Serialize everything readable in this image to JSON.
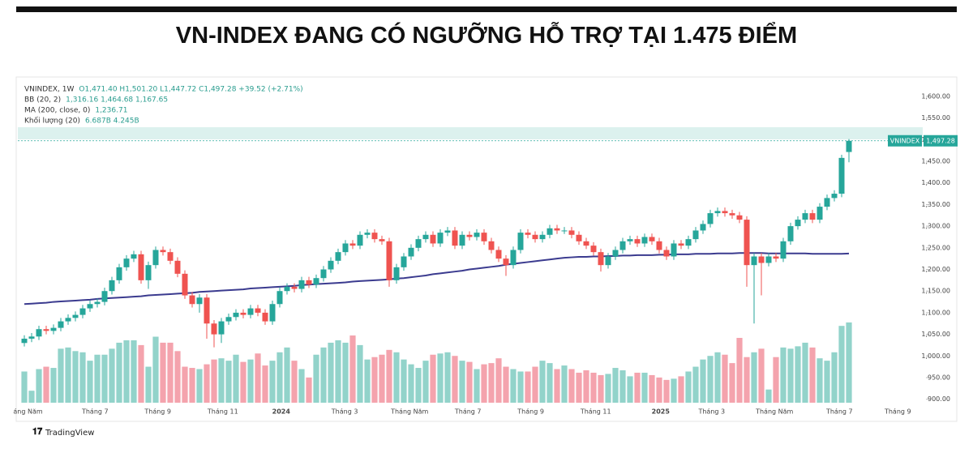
{
  "title": "VN-INDEX ĐANG CÓ NGƯỠNG HỖ TRỢ TẠI 1.475 ĐIỂM",
  "legend": [
    {
      "label": "VNINDEX, 1W",
      "values": "O1,471.40  H1,501.20  L1,447.72  C1,497.28  +39.52 (+2.71%)"
    },
    {
      "label": "BB (20, 2)",
      "values": "1,316.16  1,464.68  1,167.65"
    },
    {
      "label": "MA (200, close, 0)",
      "values": "1,236.71"
    },
    {
      "label": "Khối lượng (20)",
      "values": "6.687B  4.245B"
    }
  ],
  "price_tag": {
    "name": "VNINDEX",
    "value": "1,497.28"
  },
  "brand": "TradingView",
  "chart_data": {
    "type": "candlestick",
    "up_color": "#26a69a",
    "down_color": "#ef5350",
    "volume_up_color": "#92d3ca",
    "volume_down_color": "#f4a3ad",
    "ma_color": "#3b3b8f",
    "ylim": [
      892,
      1641
    ],
    "vlim": [
      0,
      27
    ],
    "yticks": [
      {
        "value": 900,
        "label": "900.00"
      },
      {
        "value": 950,
        "label": "950.00"
      },
      {
        "value": 1000,
        "label": "1,000.00"
      },
      {
        "value": 1050,
        "label": "1,050.00"
      },
      {
        "value": 1100,
        "label": "1,100.00"
      },
      {
        "value": 1150,
        "label": "1,150.00"
      },
      {
        "value": 1200,
        "label": "1,200.00"
      },
      {
        "value": 1250,
        "label": "1,250.00"
      },
      {
        "value": 1300,
        "label": "1,300.00"
      },
      {
        "value": 1350,
        "label": "1,350.00"
      },
      {
        "value": 1400,
        "label": "1,400.00"
      },
      {
        "value": 1450,
        "label": "1,450.00"
      },
      {
        "value": 1500,
        "label": "1,500.00"
      },
      {
        "value": 1550,
        "label": "1,550.00"
      },
      {
        "value": 1600,
        "label": "1,600.00"
      }
    ],
    "x_labels": [
      {
        "position": 0.5,
        "label": "áng Năm"
      },
      {
        "position": 9.7,
        "label": "Tháng 7"
      },
      {
        "position": 18.3,
        "label": "Tháng 9"
      },
      {
        "position": 27.2,
        "label": "Tháng 11"
      },
      {
        "position": 35.2,
        "label": "2024"
      },
      {
        "position": 43.9,
        "label": "Tháng 3"
      },
      {
        "position": 52.8,
        "label": "Tháng Năm"
      },
      {
        "position": 60.8,
        "label": "Tháng 7"
      },
      {
        "position": 69.4,
        "label": "Tháng 9"
      },
      {
        "position": 78.3,
        "label": "Tháng 11"
      },
      {
        "position": 87.2,
        "label": "2025"
      },
      {
        "position": 94.2,
        "label": "Tháng 3"
      },
      {
        "position": 102.8,
        "label": "Tháng Năm"
      },
      {
        "position": 111.7,
        "label": "Tháng 7"
      },
      {
        "position": 119.7,
        "label": "Tháng 9"
      }
    ],
    "open": [
      1030,
      1040,
      1045,
      1062,
      1058,
      1065,
      1080,
      1088,
      1095,
      1110,
      1120,
      1125,
      1150,
      1175,
      1205,
      1225,
      1235,
      1175,
      1210,
      1245,
      1240,
      1220,
      1190,
      1140,
      1120,
      1135,
      1075,
      1050,
      1080,
      1090,
      1100,
      1095,
      1110,
      1100,
      1080,
      1120,
      1150,
      1160,
      1155,
      1175,
      1165,
      1180,
      1200,
      1220,
      1240,
      1260,
      1255,
      1280,
      1285,
      1270,
      1265,
      1175,
      1205,
      1230,
      1250,
      1270,
      1280,
      1260,
      1285,
      1290,
      1255,
      1280,
      1275,
      1285,
      1265,
      1245,
      1225,
      1210,
      1245,
      1285,
      1280,
      1270,
      1280,
      1295,
      1290,
      1290,
      1280,
      1265,
      1255,
      1240,
      1210,
      1230,
      1245,
      1265,
      1270,
      1260,
      1275,
      1265,
      1245,
      1230,
      1260,
      1255,
      1270,
      1290,
      1305,
      1330,
      1335,
      1330,
      1325,
      1315,
      1210,
      1230,
      1215,
      1230,
      1225,
      1265,
      1300,
      1315,
      1330,
      1315,
      1345,
      1365,
      1375,
      1471.4
    ],
    "high": [
      1048,
      1053,
      1070,
      1070,
      1073,
      1088,
      1096,
      1103,
      1118,
      1128,
      1133,
      1158,
      1183,
      1213,
      1233,
      1243,
      1243,
      1218,
      1253,
      1253,
      1248,
      1228,
      1198,
      1148,
      1143,
      1143,
      1083,
      1088,
      1098,
      1108,
      1108,
      1118,
      1118,
      1108,
      1128,
      1158,
      1168,
      1168,
      1183,
      1183,
      1188,
      1208,
      1228,
      1248,
      1268,
      1268,
      1288,
      1293,
      1293,
      1278,
      1273,
      1213,
      1238,
      1258,
      1278,
      1288,
      1288,
      1293,
      1298,
      1298,
      1288,
      1288,
      1293,
      1293,
      1273,
      1253,
      1233,
      1253,
      1293,
      1293,
      1288,
      1288,
      1303,
      1303,
      1298,
      1298,
      1288,
      1273,
      1263,
      1248,
      1238,
      1253,
      1273,
      1278,
      1278,
      1283,
      1283,
      1273,
      1253,
      1268,
      1268,
      1278,
      1298,
      1313,
      1338,
      1343,
      1343,
      1338,
      1333,
      1323,
      1238,
      1238,
      1238,
      1238,
      1273,
      1308,
      1323,
      1338,
      1338,
      1353,
      1373,
      1383,
      1465,
      1501.2
    ],
    "low": [
      1022,
      1032,
      1037,
      1050,
      1050,
      1057,
      1072,
      1080,
      1087,
      1102,
      1112,
      1117,
      1142,
      1167,
      1197,
      1217,
      1167,
      1155,
      1202,
      1232,
      1212,
      1182,
      1132,
      1112,
      1100,
      1040,
      1020,
      1030,
      1072,
      1082,
      1087,
      1087,
      1092,
      1072,
      1072,
      1112,
      1142,
      1147,
      1147,
      1157,
      1157,
      1172,
      1192,
      1212,
      1232,
      1247,
      1247,
      1272,
      1262,
      1257,
      1160,
      1167,
      1197,
      1222,
      1242,
      1262,
      1252,
      1252,
      1277,
      1247,
      1247,
      1267,
      1267,
      1257,
      1237,
      1217,
      1185,
      1202,
      1237,
      1272,
      1262,
      1262,
      1272,
      1282,
      1282,
      1272,
      1257,
      1247,
      1232,
      1195,
      1202,
      1222,
      1237,
      1257,
      1252,
      1252,
      1257,
      1237,
      1222,
      1222,
      1247,
      1247,
      1262,
      1282,
      1297,
      1322,
      1322,
      1317,
      1307,
      1160,
      1075,
      1140,
      1207,
      1217,
      1217,
      1257,
      1292,
      1307,
      1307,
      1307,
      1337,
      1357,
      1367,
      1447.72
    ],
    "close": [
      1040,
      1045,
      1062,
      1058,
      1065,
      1080,
      1088,
      1095,
      1110,
      1120,
      1125,
      1150,
      1175,
      1205,
      1225,
      1235,
      1175,
      1210,
      1245,
      1240,
      1220,
      1190,
      1140,
      1120,
      1135,
      1075,
      1050,
      1080,
      1090,
      1100,
      1095,
      1110,
      1100,
      1080,
      1120,
      1150,
      1160,
      1155,
      1175,
      1165,
      1180,
      1200,
      1220,
      1240,
      1260,
      1255,
      1280,
      1285,
      1270,
      1265,
      1175,
      1205,
      1230,
      1250,
      1270,
      1280,
      1260,
      1285,
      1290,
      1255,
      1280,
      1275,
      1285,
      1265,
      1245,
      1225,
      1210,
      1245,
      1285,
      1280,
      1270,
      1280,
      1295,
      1290,
      1290,
      1280,
      1265,
      1255,
      1240,
      1210,
      1230,
      1245,
      1265,
      1270,
      1260,
      1275,
      1265,
      1245,
      1230,
      1260,
      1255,
      1270,
      1290,
      1305,
      1330,
      1335,
      1330,
      1325,
      1315,
      1210,
      1230,
      1215,
      1230,
      1225,
      1265,
      1300,
      1315,
      1330,
      1315,
      1345,
      1365,
      1375,
      1457.76,
      1497.28
    ],
    "volume": [
      2.6,
      1.0,
      2.8,
      3.0,
      2.9,
      4.5,
      4.6,
      4.3,
      4.2,
      3.5,
      4.0,
      4.0,
      4.5,
      5.0,
      5.2,
      5.2,
      4.8,
      3.0,
      5.5,
      5.0,
      5.0,
      4.3,
      3.0,
      2.9,
      2.8,
      3.2,
      3.6,
      3.7,
      3.5,
      4.0,
      3.4,
      3.6,
      4.1,
      3.1,
      3.5,
      4.2,
      4.6,
      3.5,
      2.8,
      2.1,
      4.0,
      4.6,
      5.0,
      5.2,
      5.0,
      5.6,
      4.8,
      3.6,
      3.8,
      4.0,
      4.4,
      4.2,
      3.6,
      3.2,
      2.9,
      3.5,
      4.0,
      4.1,
      4.2,
      3.9,
      3.5,
      3.4,
      2.8,
      3.2,
      3.3,
      3.7,
      3.0,
      2.8,
      2.6,
      2.6,
      3.0,
      3.5,
      3.3,
      2.8,
      3.1,
      2.8,
      2.5,
      2.7,
      2.5,
      2.3,
      2.4,
      2.9,
      2.7,
      2.2,
      2.5,
      2.5,
      2.3,
      2.1,
      1.9,
      2.0,
      2.2,
      2.6,
      3.0,
      3.6,
      3.9,
      4.2,
      4.0,
      3.3,
      5.4,
      3.8,
      4.2,
      4.5,
      1.1,
      3.8,
      4.6,
      4.5,
      4.7,
      5.0,
      4.6,
      3.7,
      3.5,
      4.2,
      6.4,
      6.687
    ],
    "ma200": [
      1120,
      1121,
      1122,
      1123,
      1125,
      1126,
      1127,
      1128,
      1129,
      1130,
      1132,
      1133,
      1134,
      1135,
      1136,
      1137,
      1138,
      1140,
      1141,
      1142,
      1143,
      1144,
      1145,
      1146,
      1148,
      1149,
      1150,
      1151,
      1152,
      1153,
      1154,
      1156,
      1157,
      1158,
      1159,
      1160,
      1161,
      1162,
      1164,
      1165,
      1166,
      1167,
      1168,
      1169,
      1170,
      1172,
      1173,
      1174,
      1175,
      1176,
      1177,
      1179,
      1180,
      1182,
      1184,
      1186,
      1189,
      1191,
      1193,
      1195,
      1197,
      1200,
      1202,
      1204,
      1206,
      1208,
      1211,
      1213,
      1215,
      1217,
      1219,
      1221,
      1223,
      1225,
      1227,
      1228,
      1229,
      1229,
      1230,
      1230,
      1231,
      1231,
      1232,
      1232,
      1233,
      1233,
      1233,
      1234,
      1234,
      1235,
      1235,
      1235,
      1236,
      1236,
      1236,
      1237,
      1237,
      1237,
      1238,
      1238,
      1238,
      1238,
      1237,
      1237,
      1237,
      1237,
      1237,
      1237,
      1236,
      1236,
      1236,
      1236,
      1236,
      1236.71
    ]
  }
}
